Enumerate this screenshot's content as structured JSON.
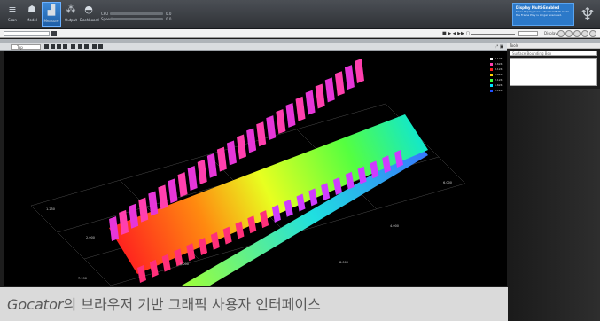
{
  "toolbar": {
    "tools": [
      {
        "label": "Scan",
        "icon": "scan-icon",
        "glyph": "≡"
      },
      {
        "label": "Model",
        "icon": "model-icon",
        "glyph": "☗"
      },
      {
        "label": "Measure",
        "icon": "measure-icon",
        "glyph": "▟",
        "active": true
      },
      {
        "label": "Output",
        "icon": "output-icon",
        "glyph": "⁂"
      },
      {
        "label": "Dashboard",
        "icon": "dashboard-icon",
        "glyph": "◓"
      }
    ],
    "stats": [
      {
        "label": "CPU",
        "value": "0.0"
      },
      {
        "label": "Speed",
        "value": "0.0"
      }
    ],
    "notification": {
      "title": "Display Multi-Enabled",
      "message": "Since Replay/Scan activated Multi mode the Frame Play is longer executed."
    },
    "logo_icon": "tree-logo-icon"
  },
  "subbar": {
    "display_label": "Display"
  },
  "view": {
    "select_value": "Top",
    "legend": [
      {
        "label": "4.124",
        "color": "#f2f2f2"
      },
      {
        "label": "3.624",
        "color": "#ff3fae"
      },
      {
        "label": "3.124",
        "color": "#ff2020"
      },
      {
        "label": "2.624",
        "color": "#ffd400"
      },
      {
        "label": "2.124",
        "color": "#3dff3d"
      },
      {
        "label": "1.624",
        "color": "#00e0ff"
      },
      {
        "label": "1.124",
        "color": "#2050ff"
      }
    ],
    "axis_labels": [
      "1.250",
      "2.000",
      "4.000",
      "6.000",
      "0.000",
      "8.000",
      "7.990"
    ]
  },
  "side": {
    "title": "Tools",
    "select_placeholder": "Surface Bounding Box"
  },
  "caption": {
    "brand": "Gocator",
    "text": "의 브라우저 기반 그래픽 사용자 인터페이스"
  }
}
